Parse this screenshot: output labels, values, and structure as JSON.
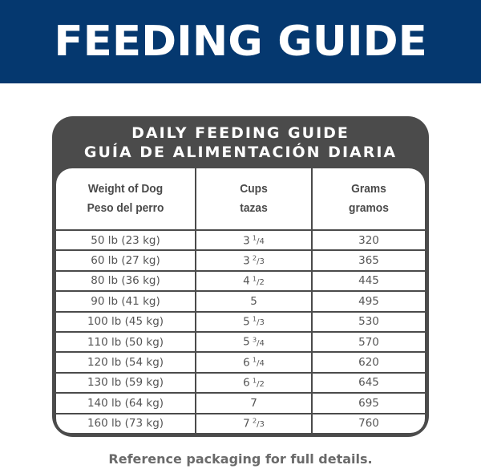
{
  "banner": {
    "title": "FEEDING GUIDE",
    "color": "#05386f"
  },
  "guide": {
    "title_en": "DAILY FEEDING GUIDE",
    "title_es": "GUÍA DE ALIMENTACIÓN DIARIA",
    "headers": [
      {
        "en": "Weight of Dog",
        "es": "Peso del perro"
      },
      {
        "en": "Cups",
        "es": "tazas"
      },
      {
        "en": "Grams",
        "es": "gramos"
      }
    ],
    "rows": [
      {
        "weight": "50 lb (23 kg)",
        "cups_whole": "3",
        "cups_num": "1",
        "cups_den": "4",
        "grams": "320"
      },
      {
        "weight": "60 lb (27 kg)",
        "cups_whole": "3",
        "cups_num": "2",
        "cups_den": "3",
        "grams": "365"
      },
      {
        "weight": "80 lb (36 kg)",
        "cups_whole": "4",
        "cups_num": "1",
        "cups_den": "2",
        "grams": "445"
      },
      {
        "weight": "90 lb (41 kg)",
        "cups_whole": "5",
        "cups_num": "",
        "cups_den": "",
        "grams": "495"
      },
      {
        "weight": "100 lb (45 kg)",
        "cups_whole": "5",
        "cups_num": "1",
        "cups_den": "3",
        "grams": "530"
      },
      {
        "weight": "110 lb (50 kg)",
        "cups_whole": "5",
        "cups_num": "3",
        "cups_den": "4",
        "grams": "570"
      },
      {
        "weight": "120 lb (54 kg)",
        "cups_whole": "6",
        "cups_num": "1",
        "cups_den": "4",
        "grams": "620"
      },
      {
        "weight": "130 lb (59 kg)",
        "cups_whole": "6",
        "cups_num": "1",
        "cups_den": "2",
        "grams": "645"
      },
      {
        "weight": "140 lb (64 kg)",
        "cups_whole": "7",
        "cups_num": "",
        "cups_den": "",
        "grams": "695"
      },
      {
        "weight": "160 lb (73 kg)",
        "cups_whole": "7",
        "cups_num": "2",
        "cups_den": "3",
        "grams": "760"
      }
    ]
  },
  "footer": {
    "note": "Reference packaging for full details."
  }
}
